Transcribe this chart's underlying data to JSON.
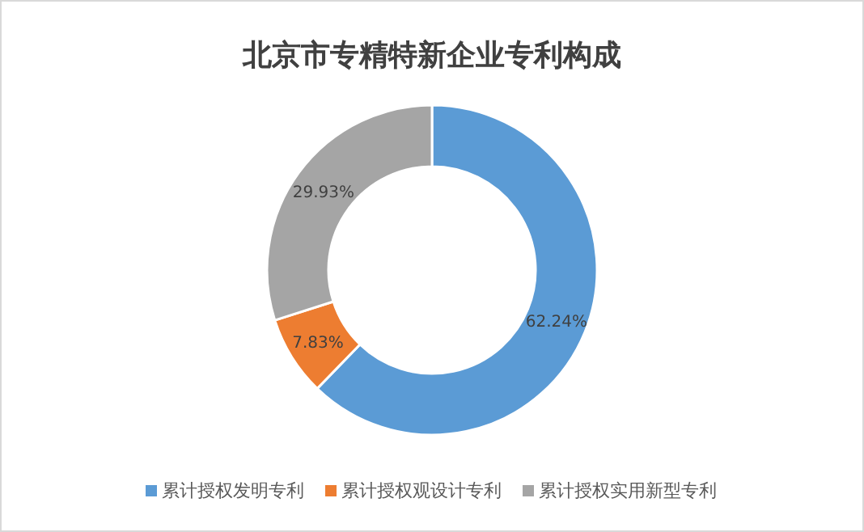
{
  "chart_data": {
    "type": "donut",
    "title": "北京市专精特新企业专利构成",
    "categories": [
      "累计授权发明专利",
      "累计授权观设计专利",
      "累计授权实用新型专利"
    ],
    "values": [
      62.24,
      7.83,
      29.93
    ],
    "colors": [
      "#5b9bd5",
      "#ed7d31",
      "#a5a5a5"
    ],
    "value_labels": [
      "62.24%",
      "7.83%",
      "29.93%"
    ],
    "legend": "bottom"
  }
}
